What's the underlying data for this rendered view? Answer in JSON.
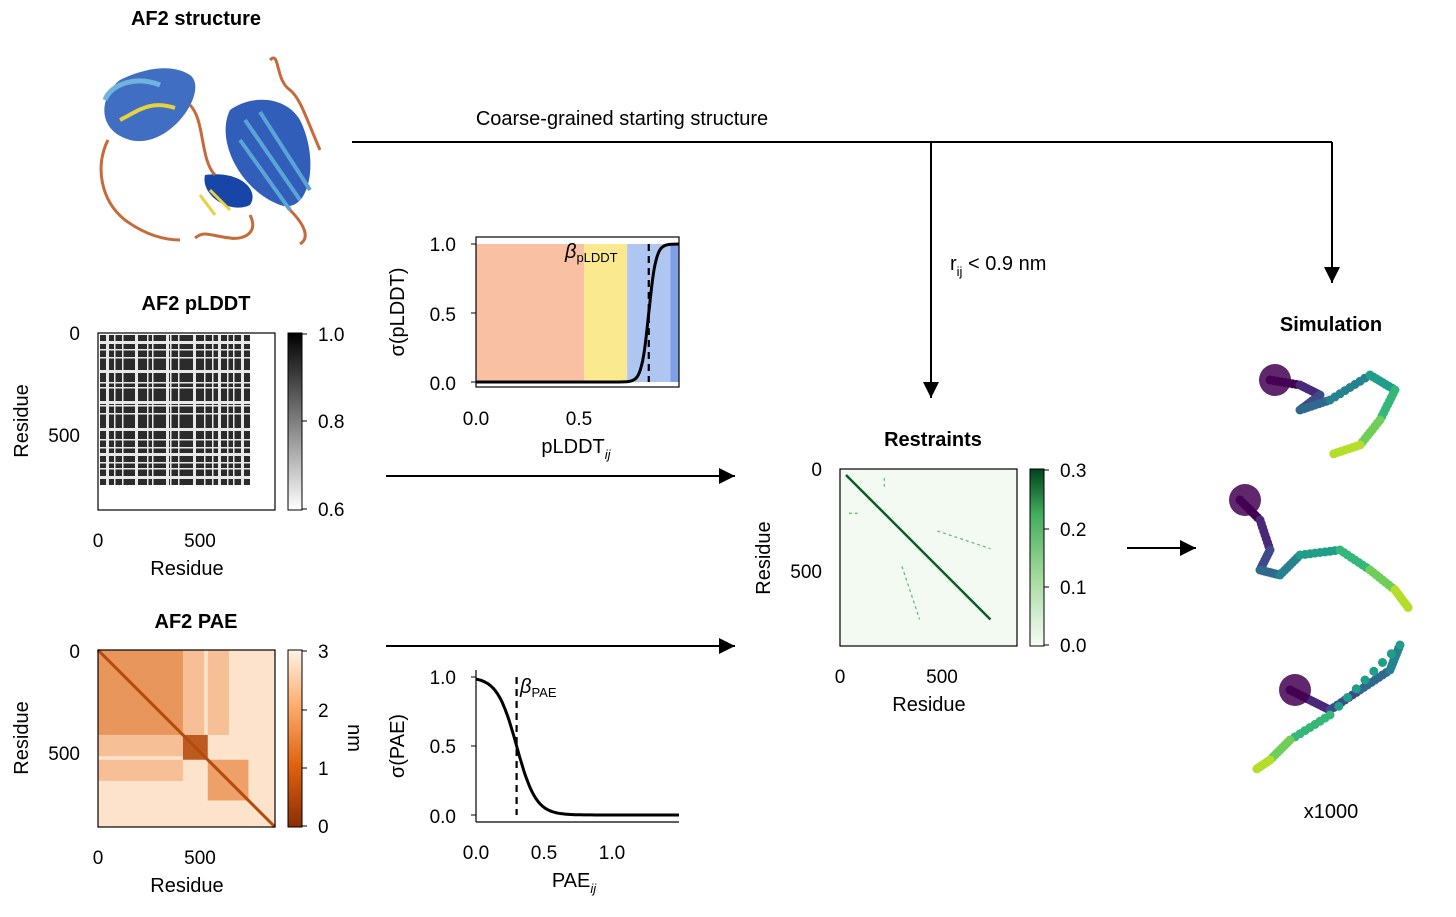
{
  "titles": {
    "structure": "AF2 structure",
    "plddt": "AF2 pLDDT",
    "pae": "AF2 PAE",
    "restraints": "Restraints",
    "simulation": "Simulation"
  },
  "labels": {
    "coarse_grained": "Coarse-grained starting structure",
    "rij_main": "r",
    "rij_sub": "ij",
    "rij_rest": " < 0.9 nm",
    "x1000": "x1000",
    "residue": "Residue",
    "nm": "nm"
  },
  "plddt_matrix": {
    "x_ticks": [
      "0",
      "500"
    ],
    "y_ticks": [
      "0",
      "500"
    ],
    "colorbar_ticks": [
      "1.0",
      "0.8",
      "0.6"
    ],
    "colormap": "greys",
    "range": [
      0.6,
      1.0
    ]
  },
  "pae_matrix": {
    "x_ticks": [
      "0",
      "500"
    ],
    "y_ticks": [
      "0",
      "500"
    ],
    "colorbar_ticks": [
      "3",
      "2",
      "1",
      "0"
    ],
    "colorbar_label": "nm",
    "colormap": "oranges",
    "range": [
      0,
      3
    ]
  },
  "restraints_matrix": {
    "x_ticks": [
      "0",
      "500"
    ],
    "y_ticks": [
      "0",
      "500"
    ],
    "colorbar_ticks": [
      "0.3",
      "0.2",
      "0.1",
      "0.0"
    ],
    "colormap": "greens",
    "range": [
      0.0,
      0.3
    ]
  },
  "chart_data": [
    {
      "type": "line",
      "title": "",
      "xlabel_main": "pLDDT",
      "xlabel_sub": "ij",
      "ylabel": "σ(pLDDT)",
      "x_ticks": [
        "0.0",
        "0.5"
      ],
      "y_ticks": [
        "1.0",
        "0.5",
        "0.0"
      ],
      "xlim": [
        0.0,
        0.94
      ],
      "ylim": [
        0.0,
        1.0
      ],
      "threshold_label_main": "β",
      "threshold_label_sub": "pLDDT",
      "threshold": 0.8,
      "bands": [
        {
          "from": 0.0,
          "to": 0.5,
          "color": "#f9c0a4"
        },
        {
          "from": 0.5,
          "to": 0.7,
          "color": "#fbe98f"
        },
        {
          "from": 0.7,
          "to": 0.9,
          "color": "#afc6f2"
        },
        {
          "from": 0.9,
          "to": 0.94,
          "color": "#7f9fe4"
        }
      ],
      "curve": {
        "kind": "sigmoid_rising",
        "center": 0.8,
        "steepness": 60
      }
    },
    {
      "type": "line",
      "title": "",
      "xlabel_main": "PAE",
      "xlabel_sub": "ij",
      "ylabel": "σ(PAE)",
      "x_ticks": [
        "0.0",
        "0.5",
        "1.0"
      ],
      "y_ticks": [
        "1.0",
        "0.5",
        "0.0"
      ],
      "xlim": [
        0.0,
        1.5
      ],
      "ylim": [
        0.0,
        1.0
      ],
      "threshold_label_main": "β",
      "threshold_label_sub": "PAE",
      "threshold": 0.3,
      "curve": {
        "kind": "sigmoid_falling",
        "center": 0.3,
        "steepness": 14
      }
    }
  ],
  "colors": {
    "plddt_dark": "#2b2b2b",
    "pae_dark": "#b64a0c",
    "pae_light": "#fde3cb",
    "restraint_green": "#0d5c26",
    "protein_dark_blue": "#1746a8",
    "protein_light_blue": "#4e9bd0",
    "protein_orange": "#c8693a",
    "protein_yellow": "#e6d23a"
  }
}
